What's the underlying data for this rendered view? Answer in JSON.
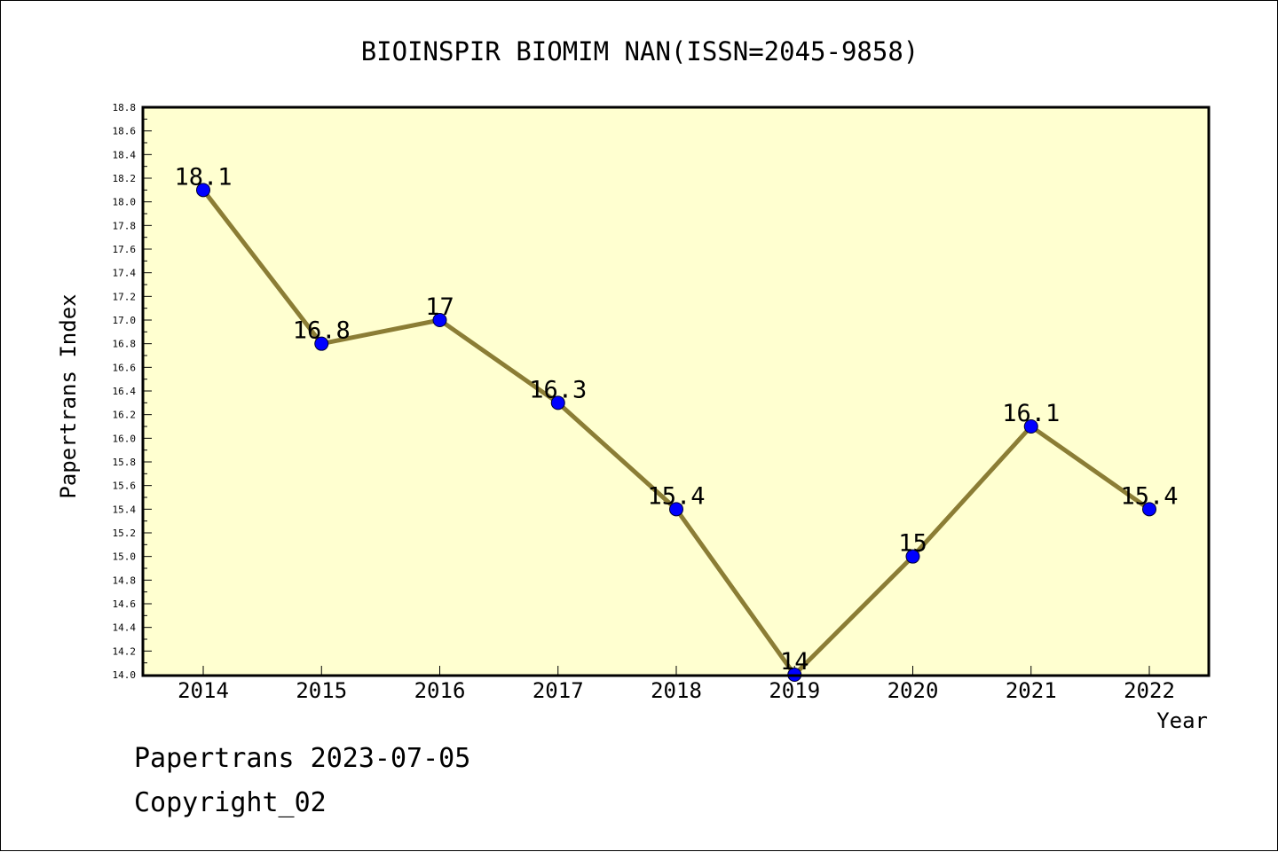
{
  "chart_data": {
    "type": "line",
    "title": "BIOINSPIR BIOMIM NAN(ISSN=2045-9858)",
    "xlabel": "Year",
    "ylabel": "Papertrans Index",
    "x": [
      "2014",
      "2015",
      "2016",
      "2017",
      "2018",
      "2019",
      "2020",
      "2021",
      "2022"
    ],
    "values": [
      18.1,
      16.8,
      17.0,
      16.3,
      15.4,
      14.0,
      15.0,
      16.1,
      15.4
    ],
    "data_labels": [
      "18.1",
      "16.8",
      "17",
      "16.3",
      "15.4",
      "14",
      "15",
      "16.1",
      "15.4"
    ],
    "ylim": [
      14.0,
      18.8
    ],
    "yticks": [
      "14.0",
      "14.2",
      "14.4",
      "14.6",
      "14.8",
      "15.0",
      "15.2",
      "15.4",
      "15.6",
      "15.8",
      "16.0",
      "16.2",
      "16.4",
      "16.6",
      "16.8",
      "17.0",
      "17.2",
      "17.4",
      "17.6",
      "17.8",
      "18.0",
      "18.2",
      "18.4",
      "18.6",
      "18.8"
    ],
    "colors": {
      "plot_background": "#ffffd0",
      "line": "#8b7d35",
      "marker": "#0000ff"
    },
    "grid": false,
    "legend": "none"
  },
  "footer": {
    "line1": "Papertrans 2023-07-05",
    "line2": "Copyright_02"
  }
}
